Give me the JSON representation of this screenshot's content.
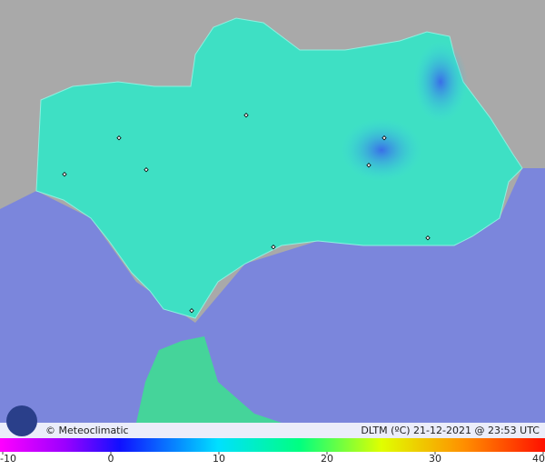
{
  "credit": "© Meteoclimatic",
  "caption": "DLTM (ºC)  21-12-2021 @ 23:53 UTC",
  "color_scale": {
    "range": [
      -10,
      40
    ],
    "ticks": [
      -10,
      0,
      10,
      20,
      30,
      40
    ]
  }
}
